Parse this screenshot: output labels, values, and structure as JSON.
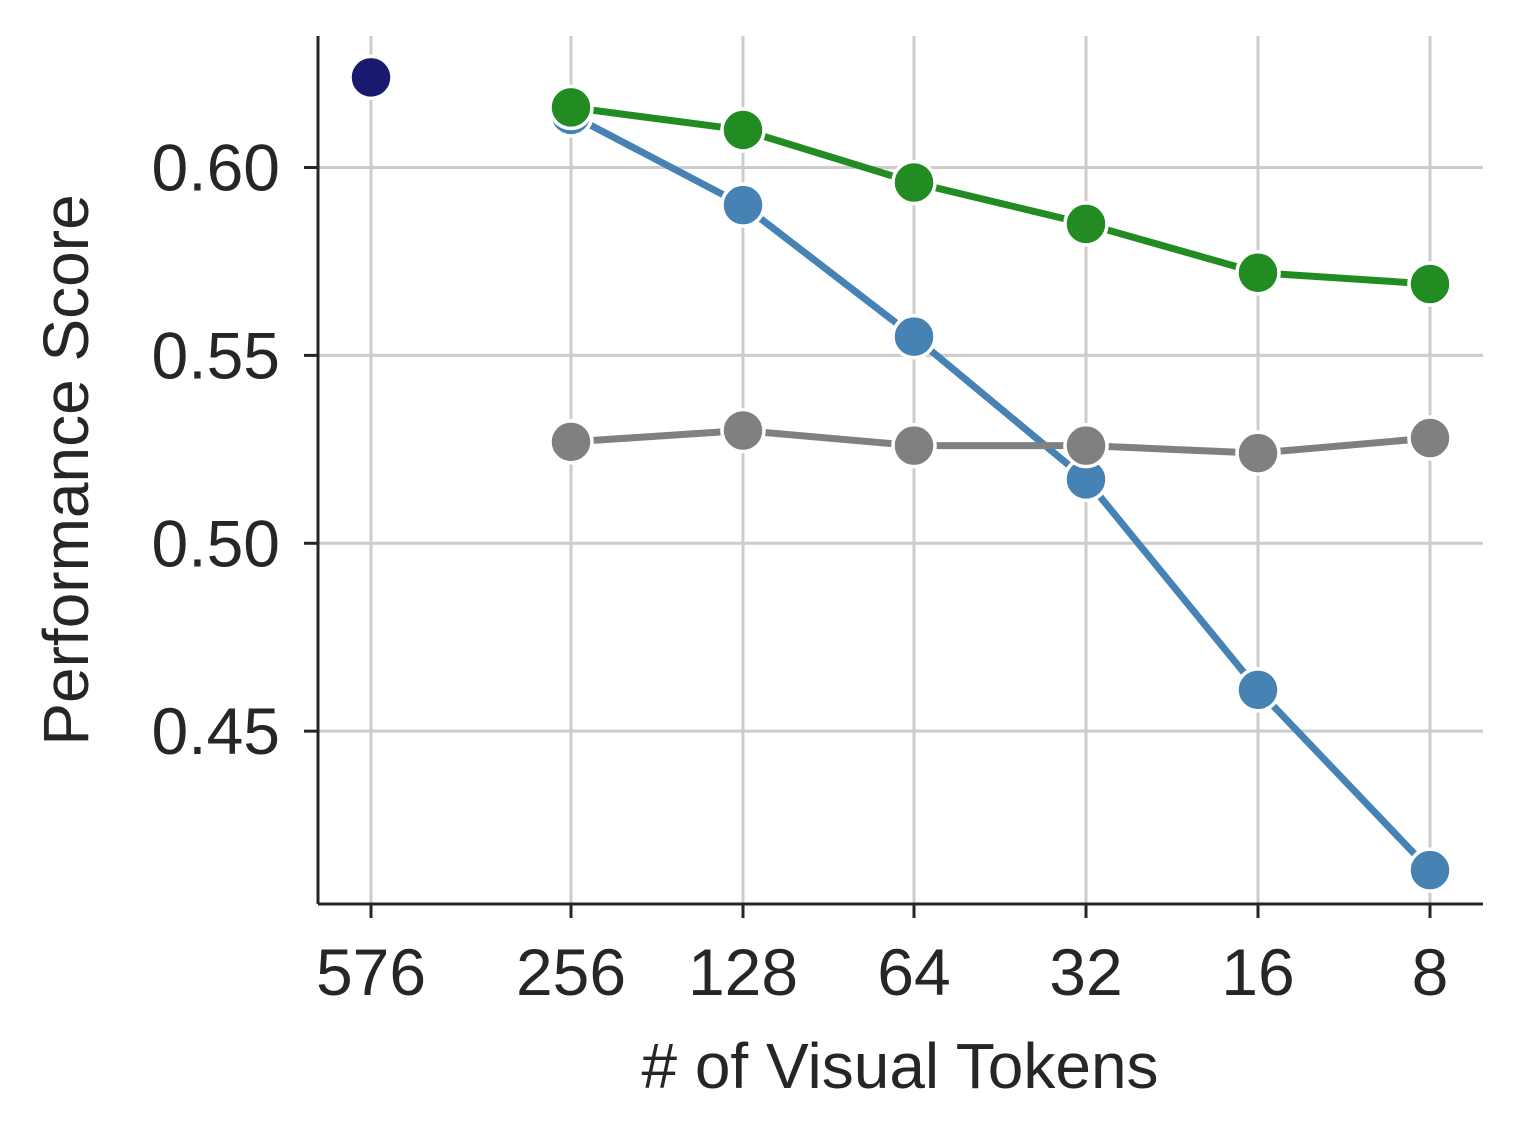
{
  "chart_data": {
    "type": "line",
    "xlabel": "# of Visual Tokens",
    "ylabel": "Performance Score",
    "categories": [
      "576",
      "256",
      "128",
      "64",
      "32",
      "16",
      "8"
    ],
    "yticks": [
      "0.45",
      "0.50",
      "0.55",
      "0.60"
    ],
    "ylim": [
      0.404,
      0.635
    ],
    "grid": true,
    "series": [
      {
        "color": "#4682b4",
        "values": [
          null,
          0.614,
          0.59,
          0.555,
          0.517,
          0.461,
          0.413
        ]
      },
      {
        "color": "#228b22",
        "values": [
          null,
          0.616,
          0.61,
          0.596,
          0.585,
          0.572,
          0.569
        ]
      },
      {
        "color": "#808080",
        "values": [
          null,
          0.527,
          0.53,
          0.526,
          0.526,
          0.524,
          0.528
        ]
      },
      {
        "color": "#191970",
        "values": [
          0.624,
          null,
          null,
          null,
          null,
          null,
          null
        ]
      }
    ]
  }
}
